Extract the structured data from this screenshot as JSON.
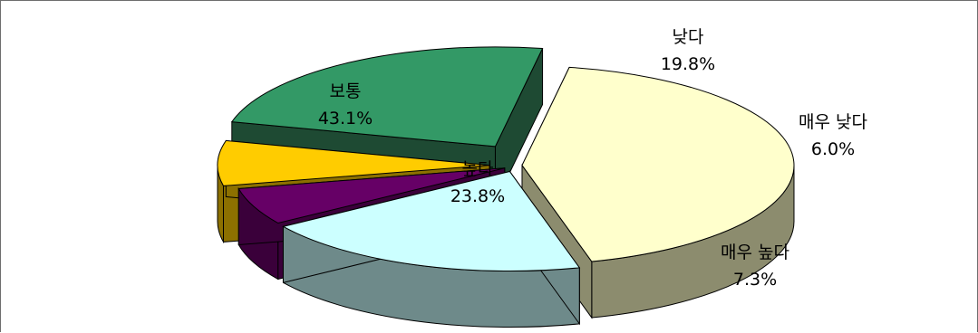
{
  "chart_data": {
    "type": "pie",
    "style": "3d-exploded",
    "categories": [
      "보통",
      "낮다",
      "매우 낮다",
      "매우 높다",
      "높다"
    ],
    "values": [
      43.1,
      19.8,
      6.0,
      7.3,
      23.8
    ],
    "value_labels": [
      "43.1%",
      "19.8%",
      "6.0%",
      "7.3%",
      "23.8%"
    ],
    "colors": [
      "#FFFFCC",
      "#CCFFFF",
      "#660066",
      "#FFCC00",
      "#339966"
    ],
    "side_colors": [
      "#8C8C6E",
      "#6E8A8A",
      "#3A003A",
      "#8C7000",
      "#1E4A33"
    ],
    "legend": "none",
    "title": ""
  }
}
